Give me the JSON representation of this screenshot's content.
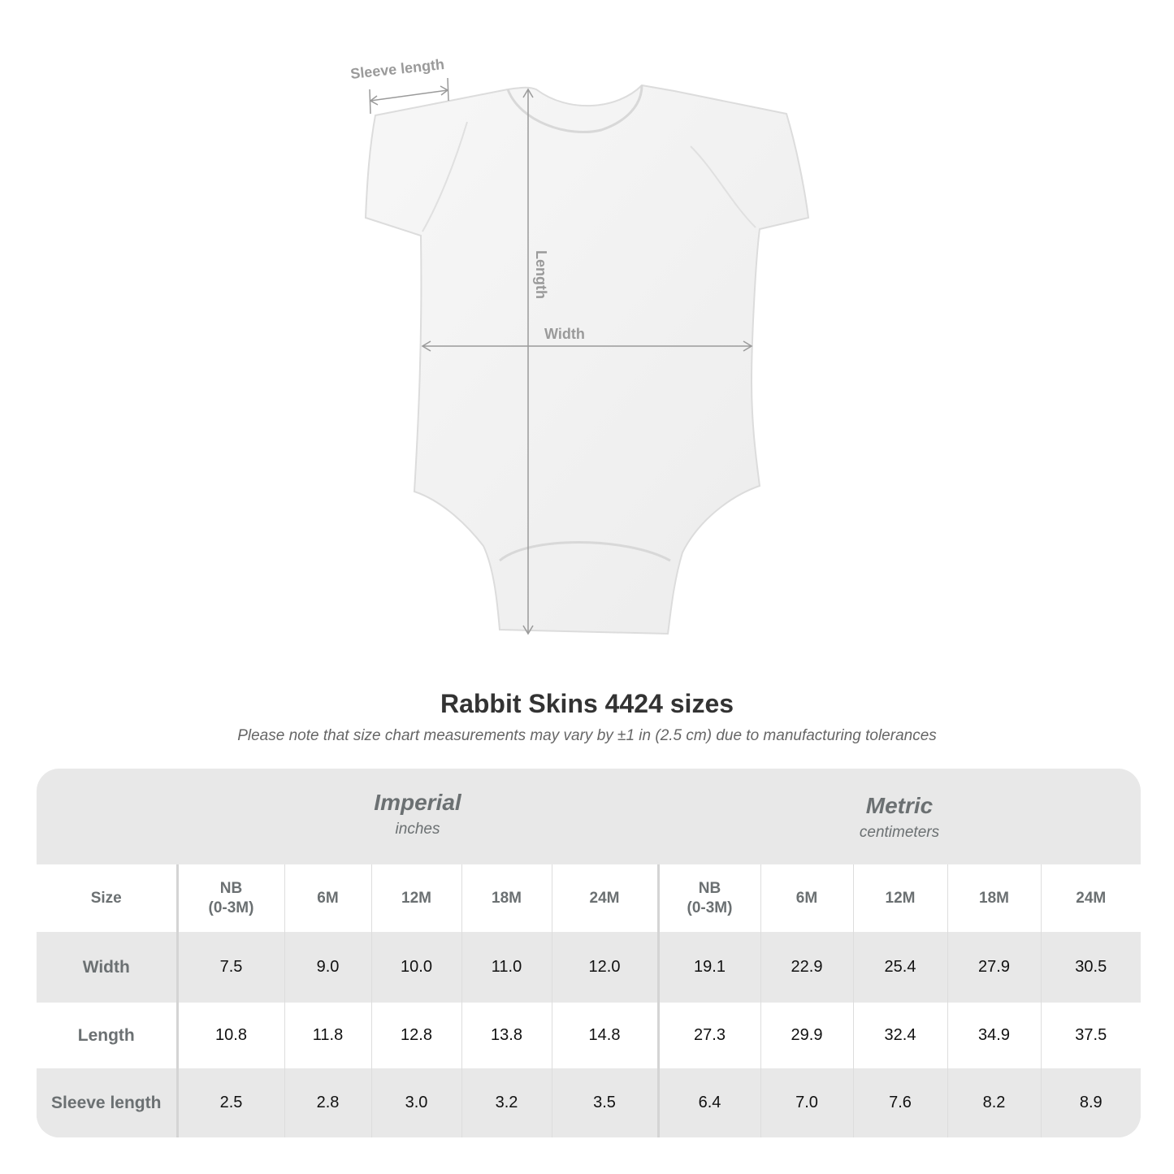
{
  "diagram": {
    "labels": {
      "sleeve": "Sleeve length",
      "length": "Length",
      "width": "Width"
    }
  },
  "title": "Rabbit Skins 4424 sizes",
  "subtitle": "Please note that size chart measurements may vary by ±1 in (2.5 cm) due to manufacturing tolerances",
  "table": {
    "imperial": {
      "name": "Imperial",
      "unit": "inches"
    },
    "metric": {
      "name": "Metric",
      "unit": "centimeters"
    },
    "size_label": "Size",
    "sizes": [
      "NB\n(0-3M)",
      "6M",
      "12M",
      "18M",
      "24M"
    ],
    "rows": [
      {
        "label": "Width",
        "imperial": [
          "7.5",
          "9.0",
          "10.0",
          "11.0",
          "12.0"
        ],
        "metric": [
          "19.1",
          "22.9",
          "25.4",
          "27.9",
          "30.5"
        ]
      },
      {
        "label": "Length",
        "imperial": [
          "10.8",
          "11.8",
          "12.8",
          "13.8",
          "14.8"
        ],
        "metric": [
          "27.3",
          "29.9",
          "32.4",
          "34.9",
          "37.5"
        ]
      },
      {
        "label": "Sleeve length",
        "imperial": [
          "2.5",
          "2.8",
          "3.0",
          "3.2",
          "3.5"
        ],
        "metric": [
          "6.4",
          "7.0",
          "7.6",
          "8.2",
          "8.9"
        ]
      }
    ]
  },
  "colors": {
    "label_gray": "#6b7072",
    "table_bg": "#e8e8e8",
    "arrow_gray": "#9a9a9a"
  }
}
